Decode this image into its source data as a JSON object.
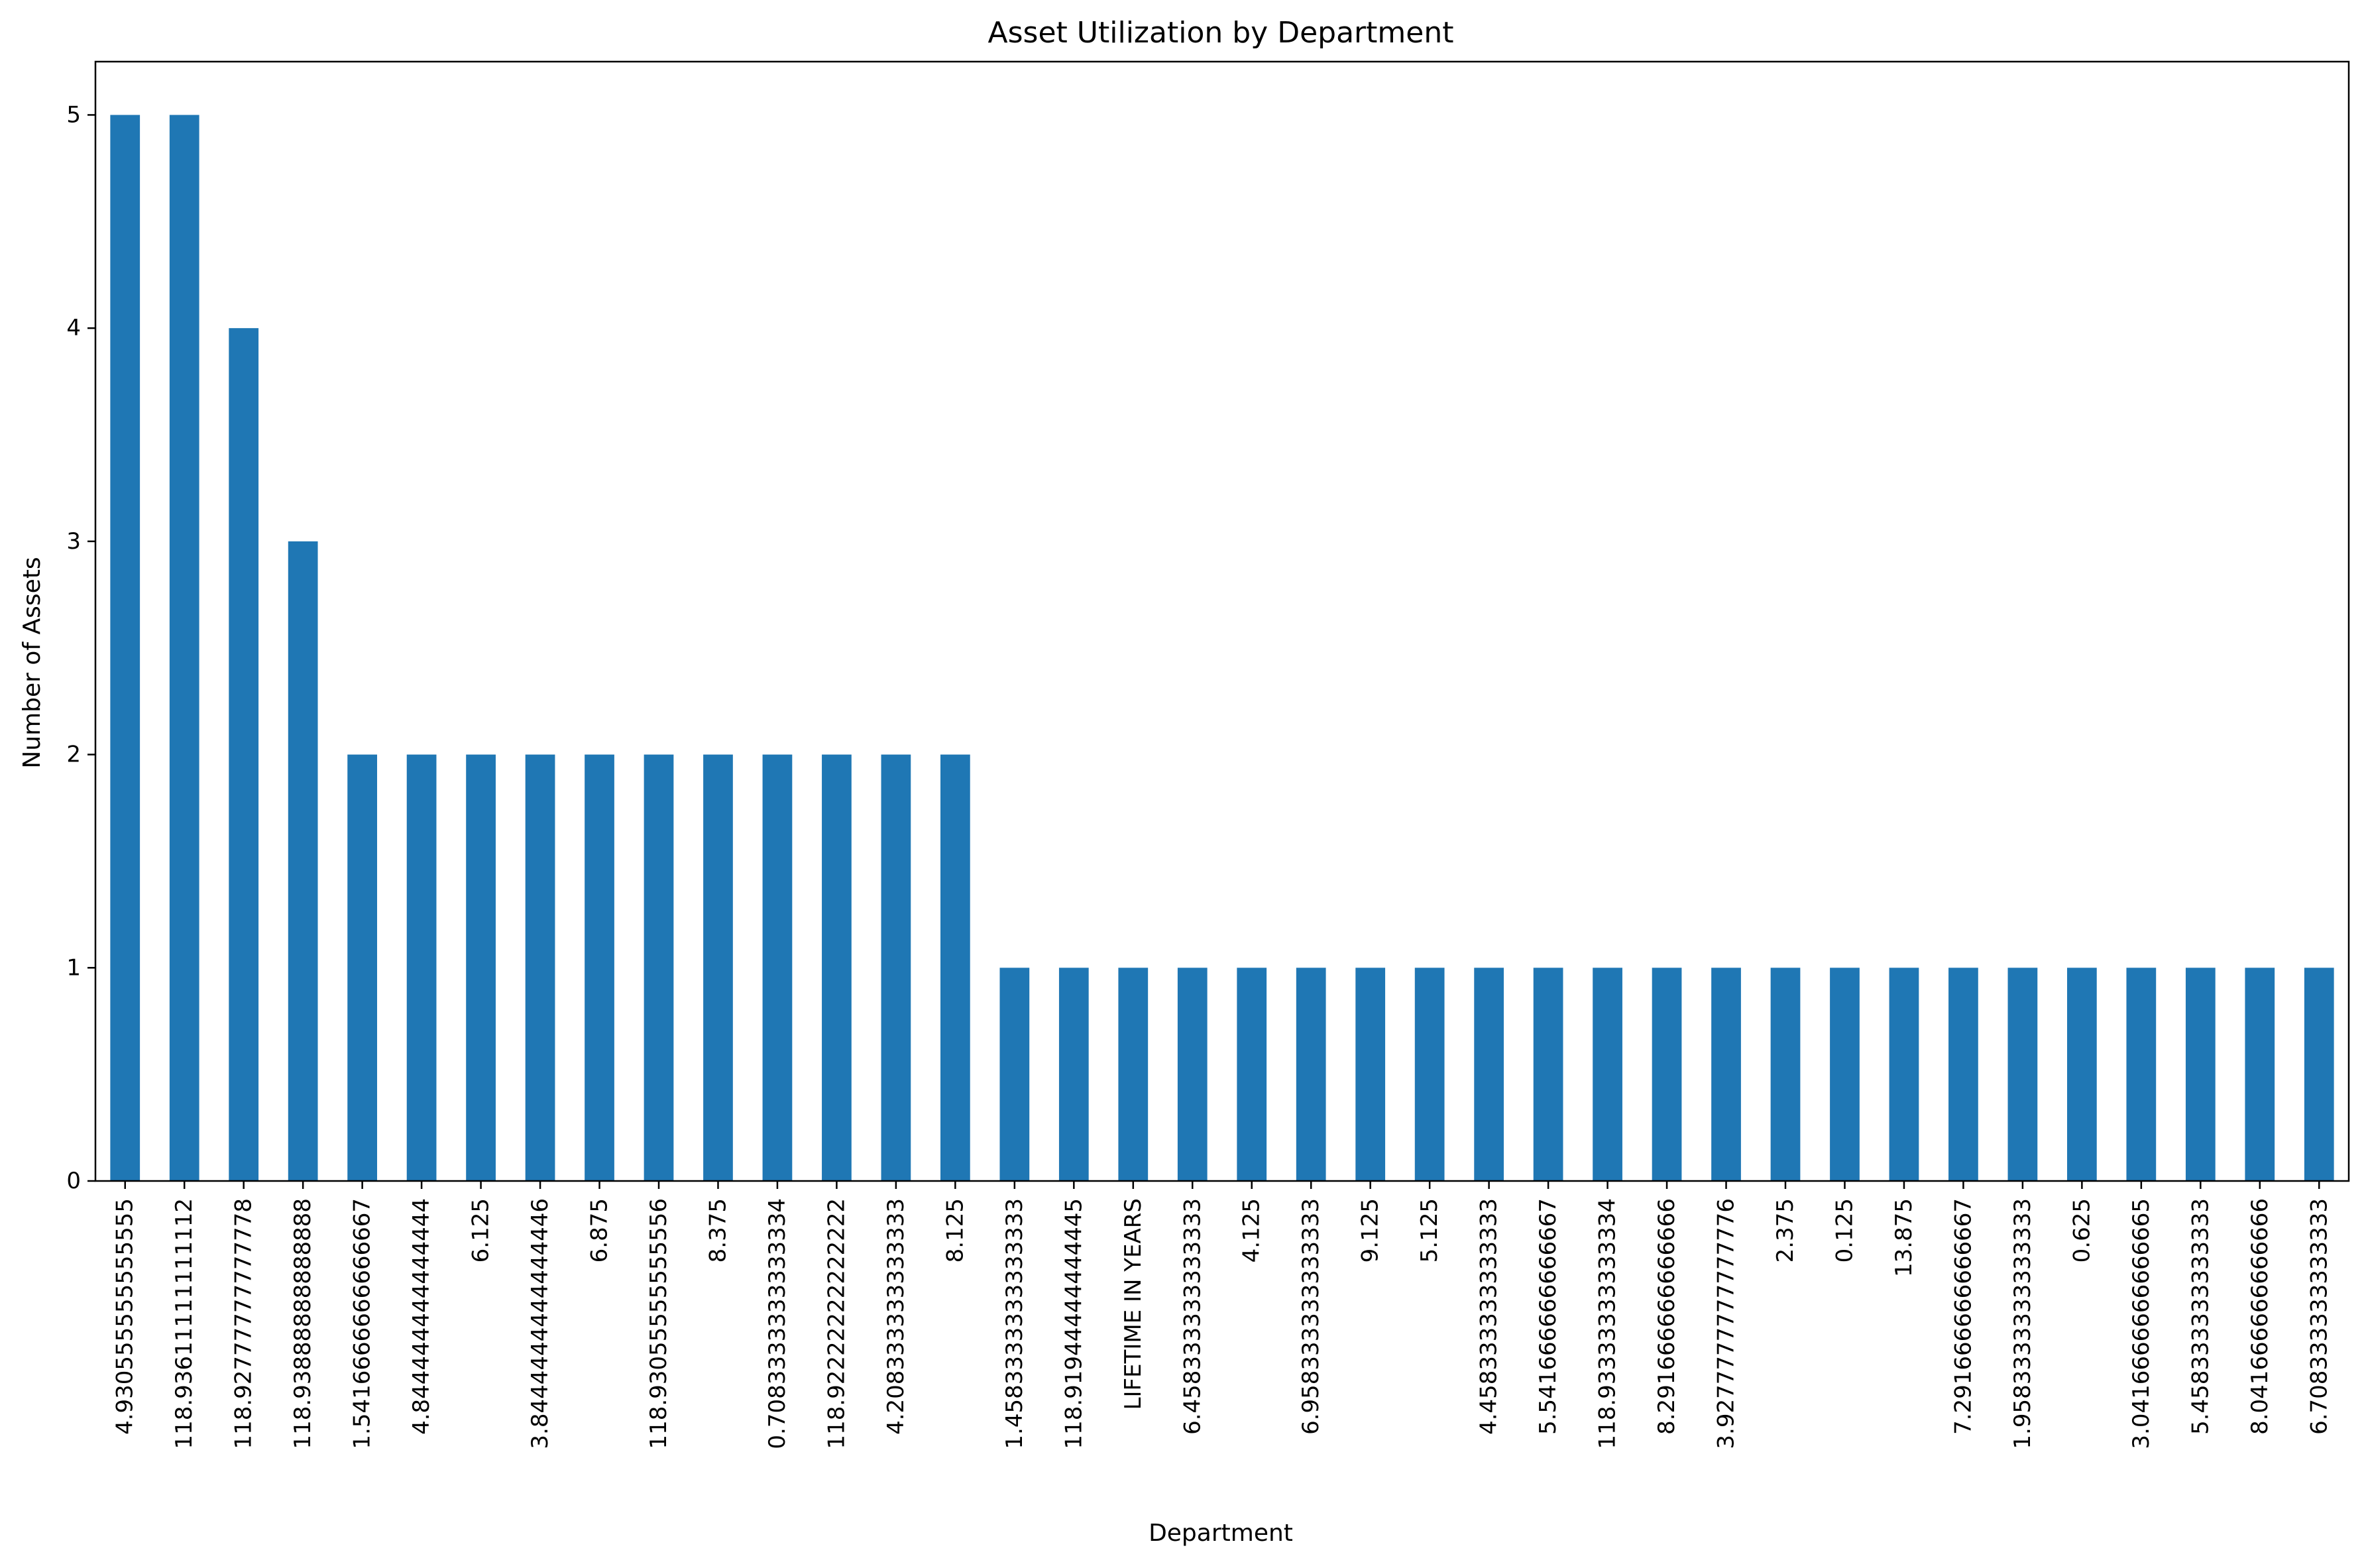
{
  "chart_data": {
    "type": "bar",
    "title": "Asset Utilization by Department",
    "xlabel": "Department",
    "ylabel": "Number of Assets",
    "ylim": [
      0,
      5.25
    ],
    "yticks": [
      0,
      1,
      2,
      3,
      4,
      5
    ],
    "color": "#1f77b4",
    "grid": false,
    "legend": "none",
    "categories": [
      "4.930555555555555",
      "118.93611111111112",
      "118.92777777777778",
      "118.93888888888888",
      "1.5416666666666667",
      "4.844444444444444",
      "6.125",
      "3.8444444444444446",
      "6.875",
      "118.93055555555556",
      "8.375",
      "0.7083333333333334",
      "118.92222222222222",
      "4.208333333333333",
      "8.125",
      "1.4583333333333333",
      "118.91944444444445",
      "LIFETIME IN YEARS",
      "6.458333333333333",
      "4.125",
      "6.958333333333333",
      "9.125",
      "5.125",
      "4.458333333333333",
      "5.541666666666667",
      "118.93333333333334",
      "8.291666666666666",
      "3.9277777777777776",
      "2.375",
      "0.125",
      "13.875",
      "7.291666666666667",
      "1.9583333333333333",
      "0.625",
      "3.0416666666666665",
      "5.458333333333333",
      "8.041666666666666",
      "6.708333333333333"
    ],
    "values": [
      5,
      5,
      4,
      3,
      2,
      2,
      2,
      2,
      2,
      2,
      2,
      2,
      2,
      2,
      2,
      1,
      1,
      1,
      1,
      1,
      1,
      1,
      1,
      1,
      1,
      1,
      1,
      1,
      1,
      1,
      1,
      1,
      1,
      1,
      1,
      1,
      1,
      1
    ]
  }
}
